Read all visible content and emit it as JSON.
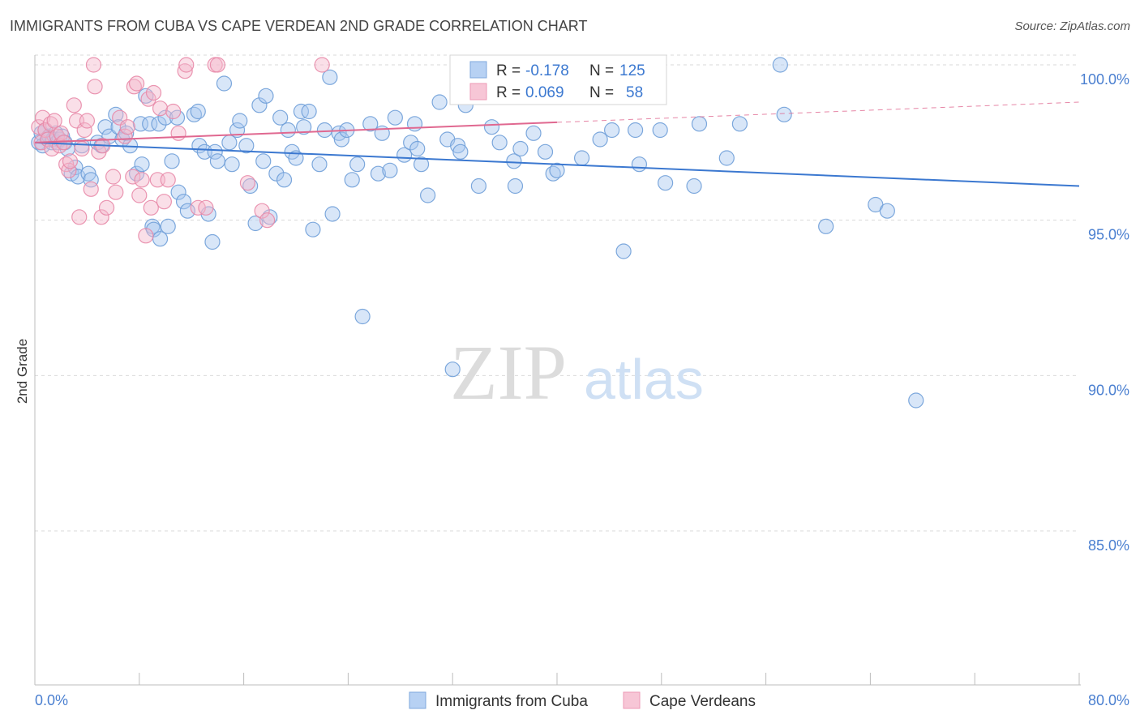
{
  "header": {
    "title": "IMMIGRANTS FROM CUBA VS CAPE VERDEAN 2ND GRADE CORRELATION CHART",
    "source": "Source: ZipAtlas.com"
  },
  "watermark": {
    "zip": "ZIP",
    "atlas": "atlas"
  },
  "stats": {
    "cuba": {
      "r_label": "R =",
      "r_value": "-0.178",
      "n_label": "N =",
      "n_value": "125"
    },
    "cape": {
      "r_label": "R =",
      "r_value": "0.069",
      "n_label": "N =",
      "n_value": "58"
    }
  },
  "legend": {
    "cuba": "Immigrants from Cuba",
    "cape": "Cape Verdeans"
  },
  "colors": {
    "cuba_fill": "#a9c8f0",
    "cuba_stroke": "#6f9fd8",
    "cuba_line": "#3b78d0",
    "cape_fill": "#f5b8cc",
    "cape_stroke": "#e88aa8",
    "cape_line": "#e06890",
    "tick_label": "#4a7fd0",
    "grid": "#d9d9d9"
  },
  "chart_data": {
    "type": "scatter",
    "title": "IMMIGRANTS FROM CUBA VS CAPE VERDEAN 2ND GRADE CORRELATION CHART",
    "xlabel": "",
    "ylabel": "2nd Grade",
    "xlim": [
      0,
      80
    ],
    "ylim": [
      80.5,
      100.9
    ],
    "x_tick_labels": [
      {
        "value": 0,
        "label": "0.0%"
      },
      {
        "value": 80,
        "label": "80.0%"
      }
    ],
    "y_tick_labels": [
      {
        "value": 100,
        "label": "100.0%"
      },
      {
        "value": 95,
        "label": "95.0%"
      },
      {
        "value": 90,
        "label": "90.0%"
      },
      {
        "value": 85,
        "label": "85.0%"
      }
    ],
    "grid": true,
    "legend_position": "bottom-center",
    "series": [
      {
        "name": "Immigrants from Cuba",
        "r": -0.178,
        "n": 125,
        "trend": {
          "x": [
            0,
            80
          ],
          "y": [
            97.5,
            96.1
          ],
          "dashed_from": null
        },
        "points": [
          [
            0.3,
            97.5
          ],
          [
            0.5,
            97.8
          ],
          [
            0.6,
            97.4
          ],
          [
            0.8,
            97.9
          ],
          [
            1.0,
            97.6
          ],
          [
            1.1,
            97.7
          ],
          [
            1.3,
            97.5
          ],
          [
            1.4,
            97.6
          ],
          [
            1.6,
            97.8
          ],
          [
            1.7,
            97.5
          ],
          [
            1.9,
            97.6
          ],
          [
            2.1,
            97.7
          ],
          [
            2.3,
            97.5
          ],
          [
            2.5,
            97.3
          ],
          [
            2.8,
            96.5
          ],
          [
            3.1,
            96.7
          ],
          [
            3.3,
            96.4
          ],
          [
            3.6,
            97.4
          ],
          [
            4.1,
            96.5
          ],
          [
            4.3,
            96.3
          ],
          [
            4.8,
            97.5
          ],
          [
            5.1,
            97.4
          ],
          [
            5.4,
            98.0
          ],
          [
            5.7,
            97.7
          ],
          [
            6.2,
            98.4
          ],
          [
            6.4,
            98.0
          ],
          [
            6.7,
            97.6
          ],
          [
            7.0,
            97.8
          ],
          [
            7.3,
            97.4
          ],
          [
            7.8,
            96.5
          ],
          [
            8.1,
            98.1
          ],
          [
            8.2,
            96.8
          ],
          [
            8.5,
            99.0
          ],
          [
            8.8,
            98.1
          ],
          [
            9.0,
            94.8
          ],
          [
            9.1,
            94.7
          ],
          [
            9.5,
            98.1
          ],
          [
            9.6,
            94.4
          ],
          [
            10.0,
            98.3
          ],
          [
            10.2,
            94.8
          ],
          [
            10.5,
            96.9
          ],
          [
            10.9,
            98.3
          ],
          [
            11.0,
            95.9
          ],
          [
            11.4,
            95.6
          ],
          [
            11.7,
            95.3
          ],
          [
            12.2,
            98.4
          ],
          [
            12.5,
            98.5
          ],
          [
            12.6,
            97.4
          ],
          [
            13.0,
            97.2
          ],
          [
            13.3,
            95.2
          ],
          [
            13.6,
            94.3
          ],
          [
            13.8,
            97.2
          ],
          [
            14.0,
            96.9
          ],
          [
            14.5,
            99.4
          ],
          [
            14.9,
            97.5
          ],
          [
            15.1,
            96.8
          ],
          [
            15.5,
            97.9
          ],
          [
            15.7,
            98.2
          ],
          [
            16.2,
            97.4
          ],
          [
            16.5,
            96.1
          ],
          [
            16.9,
            94.9
          ],
          [
            17.2,
            98.7
          ],
          [
            17.5,
            96.9
          ],
          [
            17.7,
            99.0
          ],
          [
            18.0,
            95.1
          ],
          [
            18.5,
            96.5
          ],
          [
            18.8,
            98.3
          ],
          [
            19.1,
            96.3
          ],
          [
            19.4,
            97.9
          ],
          [
            19.7,
            97.2
          ],
          [
            20.0,
            97.0
          ],
          [
            20.4,
            98.5
          ],
          [
            20.6,
            98.0
          ],
          [
            21.0,
            98.5
          ],
          [
            21.3,
            94.7
          ],
          [
            21.8,
            96.8
          ],
          [
            22.2,
            97.9
          ],
          [
            22.6,
            99.6
          ],
          [
            22.8,
            95.2
          ],
          [
            23.3,
            97.8
          ],
          [
            23.5,
            97.6
          ],
          [
            23.9,
            97.9
          ],
          [
            24.3,
            96.3
          ],
          [
            24.7,
            96.8
          ],
          [
            25.1,
            91.9
          ],
          [
            25.7,
            98.1
          ],
          [
            26.3,
            96.5
          ],
          [
            26.6,
            97.8
          ],
          [
            27.2,
            96.6
          ],
          [
            27.6,
            98.3
          ],
          [
            28.3,
            97.1
          ],
          [
            28.8,
            97.5
          ],
          [
            29.1,
            98.1
          ],
          [
            29.3,
            97.3
          ],
          [
            29.6,
            96.8
          ],
          [
            30.1,
            95.8
          ],
          [
            31.0,
            98.8
          ],
          [
            31.6,
            97.6
          ],
          [
            32.0,
            90.2
          ],
          [
            32.4,
            97.4
          ],
          [
            32.6,
            97.2
          ],
          [
            33.0,
            98.7
          ],
          [
            34.0,
            96.1
          ],
          [
            35.0,
            98.0
          ],
          [
            35.6,
            97.5
          ],
          [
            36.7,
            96.9
          ],
          [
            36.8,
            96.1
          ],
          [
            37.2,
            97.3
          ],
          [
            38.2,
            97.8
          ],
          [
            39.1,
            97.2
          ],
          [
            39.7,
            96.5
          ],
          [
            40.0,
            96.6
          ],
          [
            41.9,
            97.0
          ],
          [
            43.3,
            97.6
          ],
          [
            44.2,
            97.9
          ],
          [
            45.1,
            94.0
          ],
          [
            46.0,
            97.9
          ],
          [
            46.3,
            96.8
          ],
          [
            47.9,
            97.9
          ],
          [
            48.3,
            96.2
          ],
          [
            50.5,
            96.1
          ],
          [
            50.9,
            98.1
          ],
          [
            53.0,
            97.0
          ],
          [
            54.0,
            98.1
          ],
          [
            57.1,
            100.0
          ],
          [
            57.4,
            98.4
          ],
          [
            60.6,
            94.8
          ],
          [
            64.4,
            95.5
          ],
          [
            65.3,
            95.3
          ],
          [
            67.5,
            89.2
          ]
        ]
      },
      {
        "name": "Cape Verdeans",
        "r": 0.069,
        "n": 58,
        "trend": {
          "x": [
            0,
            80
          ],
          "y": [
            97.5,
            98.8
          ],
          "dashed_from": 40
        },
        "points": [
          [
            0.3,
            98.0
          ],
          [
            0.5,
            97.5
          ],
          [
            0.6,
            98.3
          ],
          [
            0.8,
            97.9
          ],
          [
            1.0,
            97.6
          ],
          [
            1.2,
            98.1
          ],
          [
            1.3,
            97.3
          ],
          [
            1.5,
            98.2
          ],
          [
            1.7,
            97.7
          ],
          [
            1.9,
            97.4
          ],
          [
            2.0,
            97.8
          ],
          [
            2.2,
            97.5
          ],
          [
            2.4,
            96.8
          ],
          [
            2.6,
            96.6
          ],
          [
            2.7,
            96.9
          ],
          [
            3.0,
            98.7
          ],
          [
            3.2,
            98.2
          ],
          [
            3.4,
            95.1
          ],
          [
            3.6,
            97.3
          ],
          [
            3.8,
            97.9
          ],
          [
            4.0,
            98.2
          ],
          [
            4.3,
            96.0
          ],
          [
            4.5,
            100.0
          ],
          [
            4.6,
            99.3
          ],
          [
            4.9,
            97.2
          ],
          [
            5.1,
            95.1
          ],
          [
            5.2,
            97.4
          ],
          [
            5.5,
            95.4
          ],
          [
            6.0,
            96.4
          ],
          [
            6.2,
            95.9
          ],
          [
            6.5,
            98.3
          ],
          [
            6.9,
            97.7
          ],
          [
            7.1,
            98.0
          ],
          [
            7.5,
            96.4
          ],
          [
            7.6,
            99.3
          ],
          [
            7.8,
            99.4
          ],
          [
            8.0,
            95.8
          ],
          [
            8.2,
            96.3
          ],
          [
            8.5,
            94.5
          ],
          [
            8.7,
            98.9
          ],
          [
            8.9,
            95.4
          ],
          [
            9.1,
            99.1
          ],
          [
            9.4,
            96.3
          ],
          [
            9.6,
            98.6
          ],
          [
            9.9,
            95.6
          ],
          [
            10.2,
            96.3
          ],
          [
            10.6,
            98.5
          ],
          [
            11.0,
            97.8
          ],
          [
            11.5,
            99.8
          ],
          [
            11.6,
            100.0
          ],
          [
            12.5,
            95.4
          ],
          [
            13.1,
            95.4
          ],
          [
            13.8,
            100.0
          ],
          [
            14.0,
            100.0
          ],
          [
            16.3,
            96.2
          ],
          [
            17.4,
            95.3
          ],
          [
            17.8,
            95.0
          ],
          [
            22.0,
            100.0
          ]
        ]
      }
    ]
  }
}
